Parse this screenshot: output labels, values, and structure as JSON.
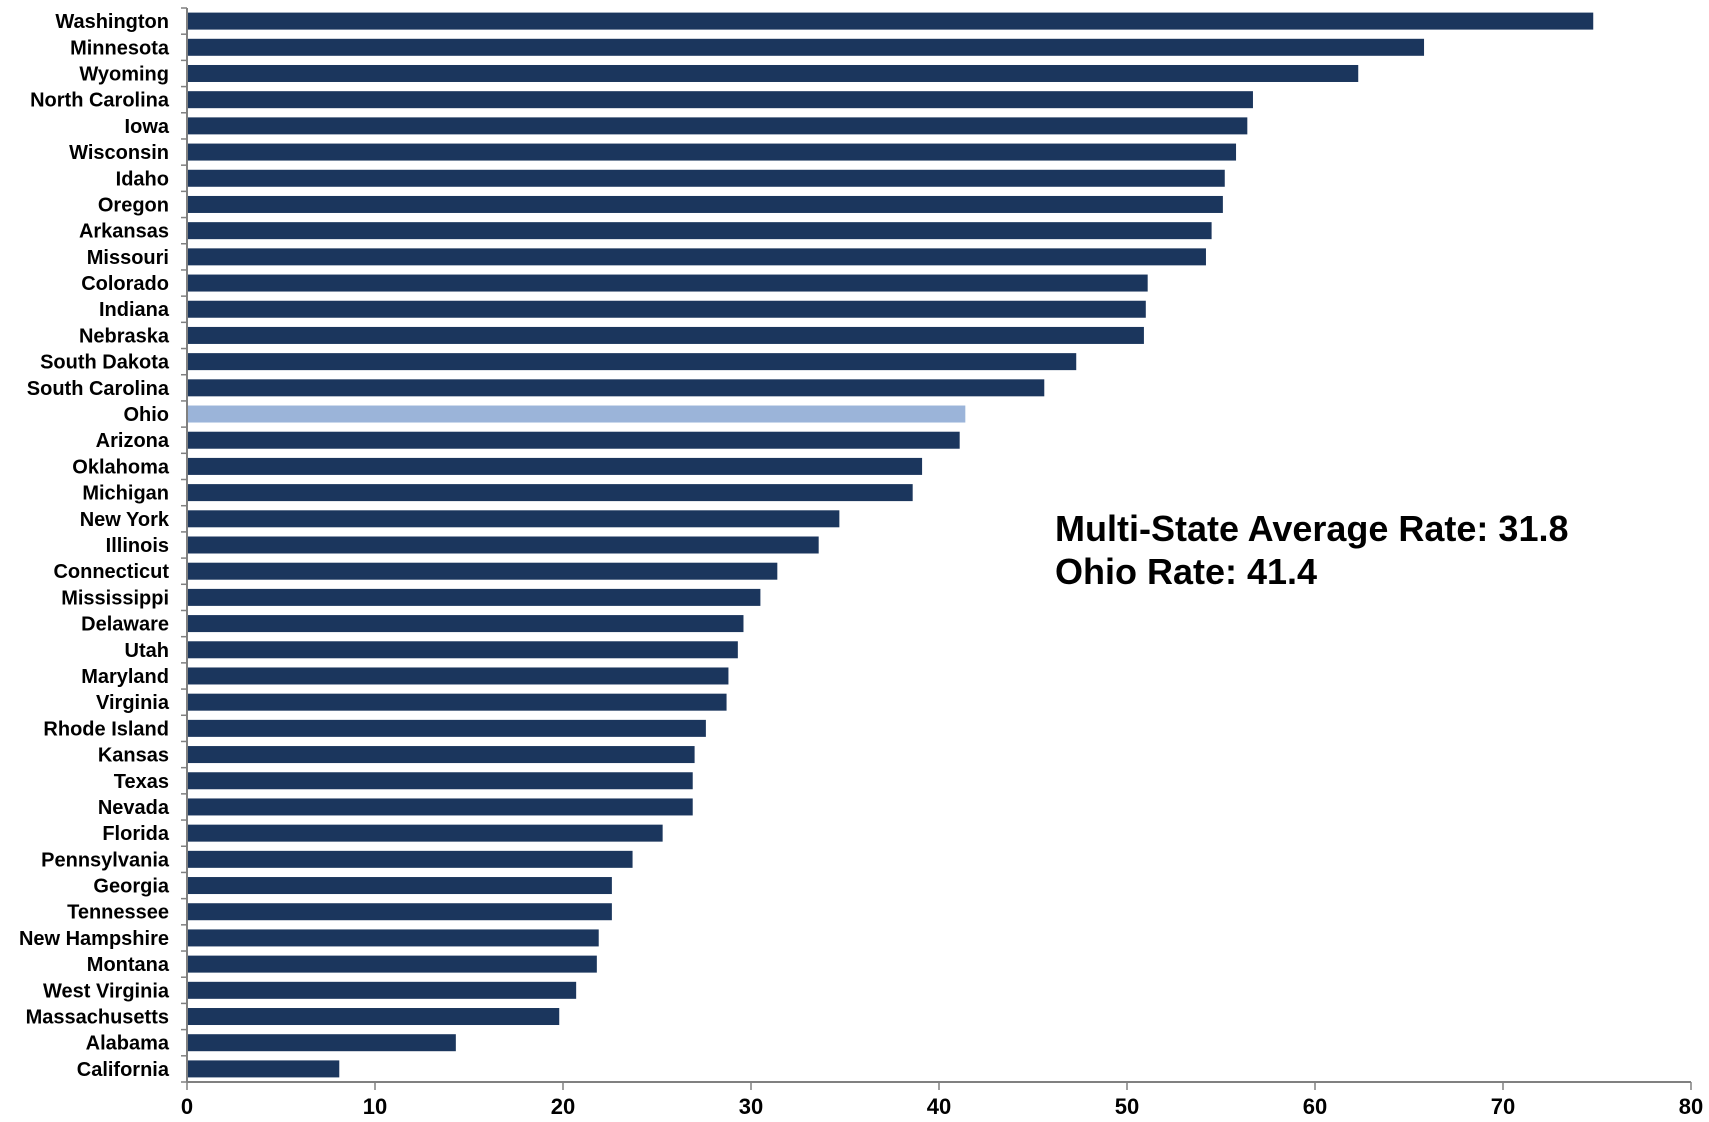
{
  "chart_data": {
    "type": "bar",
    "orientation": "horizontal",
    "categories": [
      "Washington",
      "Minnesota",
      "Wyoming",
      "North Carolina",
      "Iowa",
      "Wisconsin",
      "Idaho",
      "Oregon",
      "Arkansas",
      "Missouri",
      "Colorado",
      "Indiana",
      "Nebraska",
      "South Dakota",
      "South Carolina",
      "Ohio",
      "Arizona",
      "Oklahoma",
      "Michigan",
      "New York",
      "Illinois",
      "Connecticut",
      "Mississippi",
      "Delaware",
      "Utah",
      "Maryland",
      "Virginia",
      "Rhode Island",
      "Kansas",
      "Texas",
      "Nevada",
      "Florida",
      "Pennsylvania",
      "Georgia",
      "Tennessee",
      "New Hampshire",
      "Montana",
      "West Virginia",
      "Massachusetts",
      "Alabama",
      "California"
    ],
    "values": [
      74.8,
      65.8,
      62.3,
      56.7,
      56.4,
      55.8,
      55.2,
      55.1,
      54.5,
      54.2,
      51.1,
      51.0,
      50.9,
      47.3,
      45.6,
      41.4,
      41.1,
      39.1,
      38.6,
      34.7,
      33.6,
      31.4,
      30.5,
      29.6,
      29.3,
      28.8,
      28.7,
      27.6,
      27.0,
      26.9,
      26.9,
      25.3,
      23.7,
      22.6,
      22.6,
      21.9,
      21.8,
      20.7,
      19.8,
      14.3,
      8.1
    ],
    "highlight_category": "Ohio",
    "colors": {
      "bar": "#1b365d",
      "highlight": "#9bb4d9",
      "axis": "#808080"
    },
    "xlim": [
      0,
      80
    ],
    "xticks": [
      0,
      10,
      20,
      30,
      40,
      50,
      60,
      70,
      80
    ],
    "title": "",
    "xlabel": "",
    "ylabel": "",
    "grid": false,
    "legend": "none",
    "annotations": [
      "Multi-State Average Rate: 31.8",
      "Ohio Rate: 41.4"
    ]
  }
}
